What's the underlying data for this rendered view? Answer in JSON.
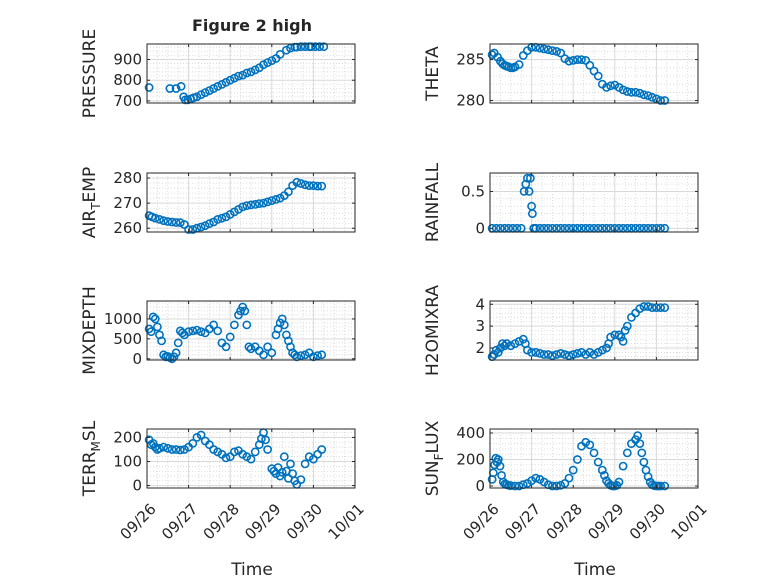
{
  "figure": {
    "title": "Figure 2 high",
    "time_label": "Time"
  },
  "colors": {
    "marker": "#0072bd",
    "axis": "#262626",
    "grid": "#d9d9d9",
    "minor_grid": "#c8c8c8"
  },
  "chart_data": [
    {
      "id": "pressure",
      "type": "scatter",
      "ylabel": "PRESSURE",
      "ylabel_base": "PRESSURE",
      "ylabel_sub": "",
      "ylabel_tail": "",
      "ylim": [
        690,
        975
      ],
      "yticks": [
        700,
        800,
        900
      ],
      "xlim": [
        0,
        5
      ],
      "x_tick_labels": [
        "09/26",
        "09/27",
        "09/28",
        "09/29",
        "09/30",
        "10/01"
      ],
      "show_x_tick_labels": false,
      "grid": true,
      "marker": "circle",
      "x": [
        0.05,
        0.55,
        0.7,
        0.82,
        0.88,
        0.92,
        0.98,
        1.05,
        1.12,
        1.2,
        1.3,
        1.4,
        1.5,
        1.6,
        1.7,
        1.8,
        1.9,
        2.0,
        2.1,
        2.2,
        2.3,
        2.4,
        2.5,
        2.6,
        2.7,
        2.8,
        2.9,
        3.0,
        3.1,
        3.2,
        3.35,
        3.45,
        3.55,
        3.6,
        3.7,
        3.8,
        3.9,
        3.95,
        4.05,
        4.15,
        4.25
      ],
      "y": [
        765,
        760,
        760,
        770,
        720,
        705,
        705,
        710,
        715,
        720,
        730,
        740,
        750,
        760,
        770,
        780,
        790,
        800,
        810,
        820,
        825,
        835,
        840,
        850,
        860,
        875,
        885,
        895,
        905,
        925,
        945,
        955,
        960,
        960,
        962,
        962,
        962,
        962,
        962,
        962,
        962
      ]
    },
    {
      "id": "theta",
      "type": "scatter",
      "ylabel": "THETA",
      "ylabel_base": "THETA",
      "ylabel_sub": "",
      "ylabel_tail": "",
      "ylim": [
        279.7,
        286.9
      ],
      "yticks": [
        280,
        285
      ],
      "xlim": [
        0,
        5
      ],
      "x_tick_labels": [
        "09/26",
        "09/27",
        "09/28",
        "09/29",
        "09/30",
        "10/01"
      ],
      "show_x_tick_labels": false,
      "grid": true,
      "marker": "circle",
      "x": [
        0.05,
        0.1,
        0.18,
        0.25,
        0.3,
        0.35,
        0.4,
        0.45,
        0.5,
        0.55,
        0.6,
        0.7,
        0.8,
        0.9,
        1.0,
        1.1,
        1.2,
        1.3,
        1.4,
        1.5,
        1.6,
        1.7,
        1.8,
        1.9,
        2.0,
        2.1,
        2.2,
        2.3,
        2.4,
        2.5,
        2.6,
        2.7,
        2.8,
        2.9,
        3.0,
        3.1,
        3.2,
        3.3,
        3.4,
        3.5,
        3.6,
        3.7,
        3.8,
        3.9,
        4.0,
        4.1,
        4.2
      ],
      "y": [
        285.6,
        285.8,
        285.3,
        284.8,
        284.5,
        284.3,
        284.2,
        284.1,
        284.0,
        284.0,
        284.1,
        284.4,
        285.5,
        286.1,
        286.5,
        286.5,
        286.4,
        286.3,
        286.2,
        286.1,
        286.0,
        285.8,
        285.1,
        284.8,
        284.9,
        285.0,
        285.0,
        284.9,
        284.3,
        283.6,
        283.0,
        282.0,
        281.6,
        281.8,
        281.9,
        281.6,
        281.3,
        281.1,
        281.0,
        281.0,
        280.9,
        280.7,
        280.6,
        280.4,
        280.2,
        280.0,
        280.0
      ]
    },
    {
      "id": "air_temp",
      "type": "scatter",
      "ylabel": "AIR_TEMP",
      "ylabel_base": "AIR",
      "ylabel_sub": "T",
      "ylabel_tail": "EMP",
      "ylim": [
        258.5,
        282
      ],
      "yticks": [
        260,
        270,
        280
      ],
      "xlim": [
        0,
        5
      ],
      "x_tick_labels": [
        "09/26",
        "09/27",
        "09/28",
        "09/29",
        "09/30",
        "10/01"
      ],
      "show_x_tick_labels": false,
      "grid": true,
      "marker": "circle",
      "x": [
        0.05,
        0.12,
        0.2,
        0.3,
        0.4,
        0.5,
        0.6,
        0.7,
        0.8,
        0.9,
        1.0,
        1.1,
        1.2,
        1.3,
        1.4,
        1.5,
        1.6,
        1.7,
        1.8,
        1.9,
        2.0,
        2.1,
        2.2,
        2.3,
        2.4,
        2.5,
        2.6,
        2.7,
        2.8,
        2.9,
        3.0,
        3.1,
        3.2,
        3.3,
        3.4,
        3.5,
        3.6,
        3.7,
        3.8,
        3.9,
        4.0,
        4.1,
        4.2
      ],
      "y": [
        265,
        264.5,
        264,
        263.5,
        263,
        262.7,
        262.5,
        262.3,
        262.2,
        261.5,
        259.5,
        259.5,
        260,
        260.5,
        261,
        261.8,
        262.5,
        263.5,
        264,
        264.5,
        265.5,
        266.5,
        267.5,
        268.5,
        269,
        269.3,
        269.5,
        269.8,
        270,
        270.5,
        271,
        271.5,
        272,
        273,
        274.5,
        277,
        278.3,
        277.8,
        277.3,
        277,
        277,
        276.8,
        276.8
      ]
    },
    {
      "id": "rainfall",
      "type": "scatter",
      "ylabel": "RAINFALL",
      "ylabel_base": "RAINFALL",
      "ylabel_sub": "",
      "ylabel_tail": "",
      "ylim": [
        -0.05,
        0.75
      ],
      "yticks": [
        0,
        0.5
      ],
      "xlim": [
        0,
        5
      ],
      "x_tick_labels": [
        "09/26",
        "09/27",
        "09/28",
        "09/29",
        "09/30",
        "10/01"
      ],
      "show_x_tick_labels": false,
      "grid": true,
      "marker": "circle",
      "x": [
        0.05,
        0.15,
        0.25,
        0.35,
        0.45,
        0.55,
        0.65,
        0.75,
        0.82,
        0.86,
        0.9,
        0.94,
        0.97,
        1.0,
        1.02,
        1.05,
        1.1,
        1.2,
        1.3,
        1.4,
        1.5,
        1.6,
        1.7,
        1.8,
        1.9,
        2.0,
        2.1,
        2.2,
        2.3,
        2.4,
        2.5,
        2.6,
        2.7,
        2.8,
        2.9,
        3.0,
        3.1,
        3.2,
        3.3,
        3.4,
        3.5,
        3.6,
        3.7,
        3.8,
        3.9,
        4.0,
        4.1,
        4.2
      ],
      "y": [
        0,
        0,
        0,
        0,
        0,
        0,
        0,
        0,
        0.5,
        0.6,
        0.68,
        0.5,
        0.68,
        0.3,
        0.2,
        0,
        0,
        0,
        0,
        0,
        0,
        0,
        0,
        0,
        0,
        0,
        0,
        0,
        0,
        0,
        0,
        0,
        0,
        0,
        0,
        0,
        0,
        0,
        0,
        0,
        0,
        0,
        0,
        0,
        0,
        0,
        0,
        0
      ]
    },
    {
      "id": "mixdepth",
      "type": "scatter",
      "ylabel": "MIXDEPTH",
      "ylabel_base": "MIXDEPTH",
      "ylabel_sub": "",
      "ylabel_tail": "",
      "ylim": [
        -30,
        1450
      ],
      "yticks": [
        0,
        500,
        1000
      ],
      "xlim": [
        0,
        5
      ],
      "x_tick_labels": [
        "09/26",
        "09/27",
        "09/28",
        "09/29",
        "09/30",
        "10/01"
      ],
      "show_x_tick_labels": false,
      "grid": true,
      "marker": "circle",
      "x": [
        0.05,
        0.1,
        0.15,
        0.2,
        0.25,
        0.3,
        0.35,
        0.4,
        0.45,
        0.5,
        0.55,
        0.6,
        0.65,
        0.7,
        0.75,
        0.8,
        0.85,
        0.9,
        1.0,
        1.1,
        1.2,
        1.3,
        1.4,
        1.5,
        1.6,
        1.7,
        1.8,
        1.9,
        2.0,
        2.1,
        2.2,
        2.25,
        2.3,
        2.35,
        2.4,
        2.45,
        2.5,
        2.6,
        2.7,
        2.8,
        2.9,
        3.0,
        3.1,
        3.15,
        3.2,
        3.25,
        3.3,
        3.35,
        3.4,
        3.45,
        3.5,
        3.55,
        3.6,
        3.7,
        3.8,
        3.9,
        4.0,
        4.1,
        4.2
      ],
      "y": [
        750,
        680,
        1050,
        1000,
        800,
        600,
        450,
        100,
        50,
        60,
        30,
        0,
        50,
        150,
        400,
        700,
        650,
        600,
        680,
        700,
        720,
        680,
        650,
        750,
        850,
        700,
        400,
        300,
        550,
        850,
        1100,
        1200,
        1300,
        1200,
        850,
        300,
        250,
        300,
        200,
        100,
        300,
        150,
        600,
        750,
        900,
        1000,
        850,
        600,
        450,
        300,
        150,
        100,
        50,
        80,
        100,
        150,
        50,
        80,
        100
      ]
    }
  ]
}
